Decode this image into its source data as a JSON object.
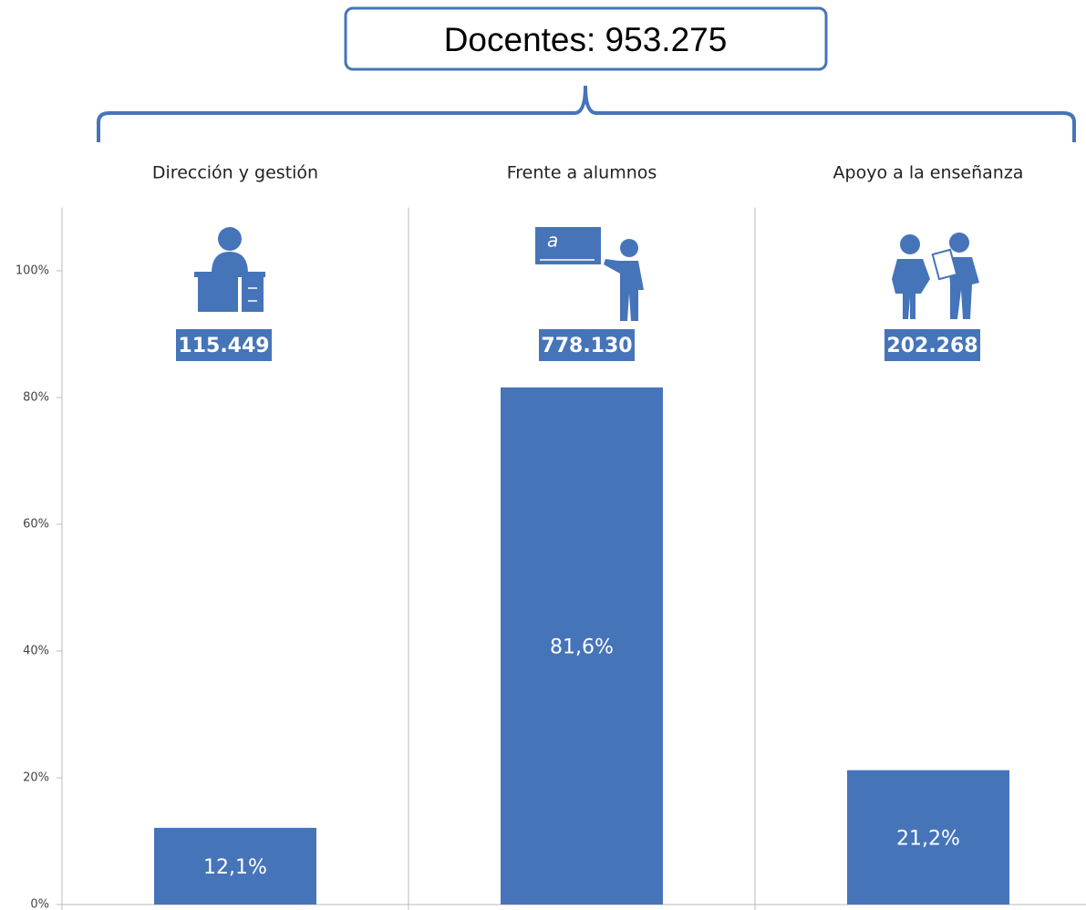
{
  "chart_data": {
    "type": "bar",
    "title": "Docentes: 953.275",
    "categories": [
      "Dirección y gestión",
      "Frente a alumnos",
      "Apoyo a la enseñanza"
    ],
    "values": [
      12.1,
      81.6,
      21.2
    ],
    "value_labels": [
      "12,1%",
      "81,6%",
      "21,2%"
    ],
    "counts": [
      115449,
      778130,
      202268
    ],
    "count_labels": [
      "115.449",
      "778.130",
      "202.268"
    ],
    "board_text": "a",
    "color": "#4674b9",
    "ylim": [
      0,
      110
    ],
    "yticks": [
      {
        "value": 0,
        "label": "0%"
      },
      {
        "value": 20,
        "label": "20%"
      },
      {
        "value": 40,
        "label": "40%"
      },
      {
        "value": 60,
        "label": "60%"
      },
      {
        "value": 80,
        "label": "80%"
      },
      {
        "value": 100,
        "label": "100%"
      }
    ],
    "grid": false
  }
}
